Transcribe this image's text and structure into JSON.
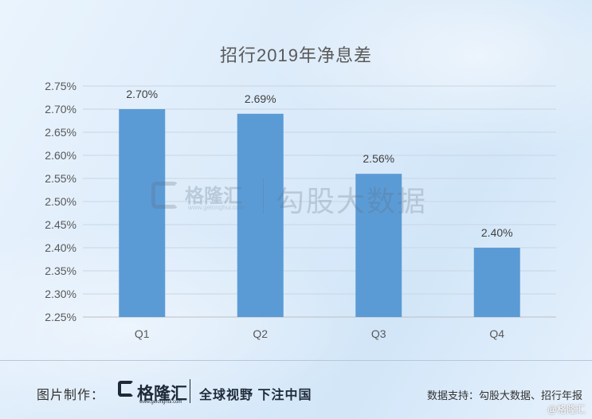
{
  "chart_data": {
    "type": "bar",
    "title": "招行2019年净息差",
    "categories": [
      "Q1",
      "Q2",
      "Q3",
      "Q4"
    ],
    "values": [
      2.7,
      2.69,
      2.56,
      2.4
    ],
    "data_labels": [
      "2.70%",
      "2.69%",
      "2.56%",
      "2.40%"
    ],
    "ylim": [
      2.25,
      2.75
    ],
    "yticks": [
      "2.75%",
      "2.70%",
      "2.65%",
      "2.60%",
      "2.55%",
      "2.50%",
      "2.45%",
      "2.40%",
      "2.35%",
      "2.30%",
      "2.25%"
    ],
    "ytick_values": [
      2.75,
      2.7,
      2.65,
      2.6,
      2.55,
      2.5,
      2.45,
      2.4,
      2.35,
      2.3,
      2.25
    ],
    "grid": true,
    "bar_color": "#5b9bd5"
  },
  "watermark": {
    "brand": "格隆汇",
    "url": "www.gelonghui.com",
    "text": "勾股大数据"
  },
  "footer": {
    "label": "图片制作：",
    "brand": "格隆汇",
    "url": "www.gelonghui.com",
    "slogan": "全球视野 下注中国",
    "source": "数据支持：勾股大数据、招行年报"
  },
  "corner_mark": "@格隆汇"
}
